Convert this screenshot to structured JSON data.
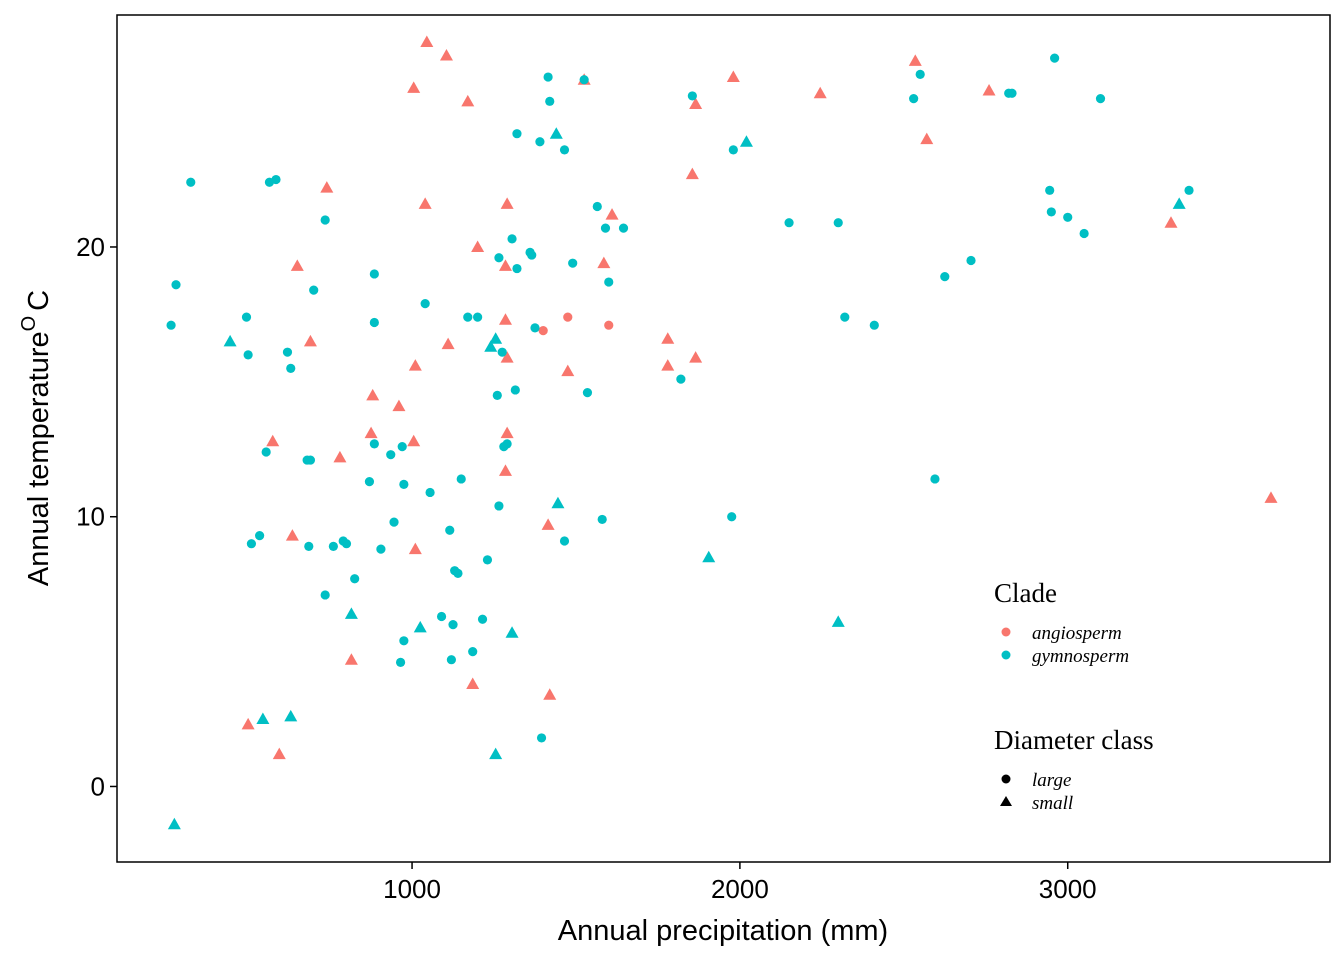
{
  "chart_data": {
    "type": "scatter",
    "xlabel": "Annual precipitation (mm)",
    "ylabel_main": "Annual temperature",
    "ylabel_sup": "O",
    "ylabel_unit": "C",
    "xlim": [
      100,
      3800
    ],
    "ylim": [
      -2.8,
      28.6
    ],
    "x_ticks": [
      1000,
      2000,
      3000
    ],
    "y_ticks": [
      0,
      10,
      20
    ],
    "grid": false,
    "legend": {
      "placement": "bottom-right-inside",
      "color_title": "Clade",
      "shape_title": "Diameter class",
      "clades": [
        {
          "name": "angiosperm",
          "color": "#F8766D"
        },
        {
          "name": "gymnosperm",
          "color": "#00BFC4"
        }
      ],
      "shapes": [
        {
          "name": "large",
          "shape": "circle"
        },
        {
          "name": "small",
          "shape": "triangle"
        }
      ]
    },
    "points": [
      {
        "x": 1045,
        "y": 27.6,
        "clade": "angiosperm",
        "size": "small"
      },
      {
        "x": 1105,
        "y": 27.1,
        "clade": "angiosperm",
        "size": "small"
      },
      {
        "x": 1005,
        "y": 25.9,
        "clade": "angiosperm",
        "size": "small"
      },
      {
        "x": 1170,
        "y": 25.4,
        "clade": "angiosperm",
        "size": "small"
      },
      {
        "x": 1040,
        "y": 21.6,
        "clade": "angiosperm",
        "size": "small"
      },
      {
        "x": 740,
        "y": 22.2,
        "clade": "angiosperm",
        "size": "small"
      },
      {
        "x": 650,
        "y": 19.3,
        "clade": "angiosperm",
        "size": "small"
      },
      {
        "x": 690,
        "y": 16.5,
        "clade": "angiosperm",
        "size": "small"
      },
      {
        "x": 1200,
        "y": 20.0,
        "clade": "angiosperm",
        "size": "small"
      },
      {
        "x": 1290,
        "y": 21.6,
        "clade": "angiosperm",
        "size": "small"
      },
      {
        "x": 1285,
        "y": 19.3,
        "clade": "angiosperm",
        "size": "small"
      },
      {
        "x": 1285,
        "y": 17.3,
        "clade": "angiosperm",
        "size": "small"
      },
      {
        "x": 1290,
        "y": 15.9,
        "clade": "angiosperm",
        "size": "small"
      },
      {
        "x": 1110,
        "y": 16.4,
        "clade": "angiosperm",
        "size": "small"
      },
      {
        "x": 1010,
        "y": 15.6,
        "clade": "angiosperm",
        "size": "small"
      },
      {
        "x": 880,
        "y": 14.5,
        "clade": "angiosperm",
        "size": "small"
      },
      {
        "x": 960,
        "y": 14.1,
        "clade": "angiosperm",
        "size": "small"
      },
      {
        "x": 875,
        "y": 13.1,
        "clade": "angiosperm",
        "size": "small"
      },
      {
        "x": 1005,
        "y": 12.8,
        "clade": "angiosperm",
        "size": "small"
      },
      {
        "x": 1290,
        "y": 13.1,
        "clade": "angiosperm",
        "size": "small"
      },
      {
        "x": 1285,
        "y": 11.7,
        "clade": "angiosperm",
        "size": "small"
      },
      {
        "x": 575,
        "y": 12.8,
        "clade": "angiosperm",
        "size": "small"
      },
      {
        "x": 780,
        "y": 12.2,
        "clade": "angiosperm",
        "size": "small"
      },
      {
        "x": 635,
        "y": 9.3,
        "clade": "angiosperm",
        "size": "small"
      },
      {
        "x": 1010,
        "y": 8.8,
        "clade": "angiosperm",
        "size": "small"
      },
      {
        "x": 1415,
        "y": 9.7,
        "clade": "angiosperm",
        "size": "small"
      },
      {
        "x": 815,
        "y": 4.7,
        "clade": "angiosperm",
        "size": "small"
      },
      {
        "x": 1185,
        "y": 3.8,
        "clade": "angiosperm",
        "size": "small"
      },
      {
        "x": 1420,
        "y": 3.4,
        "clade": "angiosperm",
        "size": "small"
      },
      {
        "x": 500,
        "y": 2.3,
        "clade": "angiosperm",
        "size": "small"
      },
      {
        "x": 595,
        "y": 1.2,
        "clade": "angiosperm",
        "size": "small"
      },
      {
        "x": 1400,
        "y": 16.9,
        "clade": "angiosperm",
        "size": "large"
      },
      {
        "x": 1475,
        "y": 17.4,
        "clade": "angiosperm",
        "size": "large"
      },
      {
        "x": 1475,
        "y": 15.4,
        "clade": "angiosperm",
        "size": "small"
      },
      {
        "x": 1585,
        "y": 19.4,
        "clade": "angiosperm",
        "size": "small"
      },
      {
        "x": 1610,
        "y": 21.2,
        "clade": "angiosperm",
        "size": "small"
      },
      {
        "x": 1600,
        "y": 17.1,
        "clade": "angiosperm",
        "size": "large"
      },
      {
        "x": 1780,
        "y": 16.6,
        "clade": "angiosperm",
        "size": "small"
      },
      {
        "x": 1780,
        "y": 15.6,
        "clade": "angiosperm",
        "size": "small"
      },
      {
        "x": 1865,
        "y": 15.9,
        "clade": "angiosperm",
        "size": "small"
      },
      {
        "x": 1855,
        "y": 22.7,
        "clade": "angiosperm",
        "size": "small"
      },
      {
        "x": 1865,
        "y": 25.3,
        "clade": "angiosperm",
        "size": "small"
      },
      {
        "x": 1980,
        "y": 26.3,
        "clade": "angiosperm",
        "size": "small"
      },
      {
        "x": 2245,
        "y": 25.7,
        "clade": "angiosperm",
        "size": "small"
      },
      {
        "x": 2535,
        "y": 26.9,
        "clade": "angiosperm",
        "size": "small"
      },
      {
        "x": 2570,
        "y": 24.0,
        "clade": "angiosperm",
        "size": "small"
      },
      {
        "x": 2760,
        "y": 25.8,
        "clade": "angiosperm",
        "size": "small"
      },
      {
        "x": 3315,
        "y": 20.9,
        "clade": "angiosperm",
        "size": "small"
      },
      {
        "x": 3620,
        "y": 10.7,
        "clade": "angiosperm",
        "size": "small"
      },
      {
        "x": 1525,
        "y": 26.2,
        "clade": "angiosperm",
        "size": "small"
      },
      {
        "x": 265,
        "y": 17.1,
        "clade": "gymnosperm",
        "size": "large"
      },
      {
        "x": 280,
        "y": 18.6,
        "clade": "gymnosperm",
        "size": "large"
      },
      {
        "x": 325,
        "y": 22.4,
        "clade": "gymnosperm",
        "size": "large"
      },
      {
        "x": 445,
        "y": 16.5,
        "clade": "gymnosperm",
        "size": "small"
      },
      {
        "x": 495,
        "y": 17.4,
        "clade": "gymnosperm",
        "size": "large"
      },
      {
        "x": 500,
        "y": 16.0,
        "clade": "gymnosperm",
        "size": "large"
      },
      {
        "x": 565,
        "y": 22.4,
        "clade": "gymnosperm",
        "size": "large"
      },
      {
        "x": 585,
        "y": 22.5,
        "clade": "gymnosperm",
        "size": "large"
      },
      {
        "x": 620,
        "y": 16.1,
        "clade": "gymnosperm",
        "size": "large"
      },
      {
        "x": 630,
        "y": 15.5,
        "clade": "gymnosperm",
        "size": "large"
      },
      {
        "x": 700,
        "y": 18.4,
        "clade": "gymnosperm",
        "size": "large"
      },
      {
        "x": 735,
        "y": 21.0,
        "clade": "gymnosperm",
        "size": "large"
      },
      {
        "x": 555,
        "y": 12.4,
        "clade": "gymnosperm",
        "size": "large"
      },
      {
        "x": 680,
        "y": 12.1,
        "clade": "gymnosperm",
        "size": "large"
      },
      {
        "x": 690,
        "y": 12.1,
        "clade": "gymnosperm",
        "size": "large"
      },
      {
        "x": 510,
        "y": 9.0,
        "clade": "gymnosperm",
        "size": "large"
      },
      {
        "x": 535,
        "y": 9.3,
        "clade": "gymnosperm",
        "size": "large"
      },
      {
        "x": 685,
        "y": 8.9,
        "clade": "gymnosperm",
        "size": "large"
      },
      {
        "x": 735,
        "y": 7.1,
        "clade": "gymnosperm",
        "size": "large"
      },
      {
        "x": 760,
        "y": 8.9,
        "clade": "gymnosperm",
        "size": "large"
      },
      {
        "x": 790,
        "y": 9.1,
        "clade": "gymnosperm",
        "size": "large"
      },
      {
        "x": 800,
        "y": 9.0,
        "clade": "gymnosperm",
        "size": "large"
      },
      {
        "x": 815,
        "y": 6.4,
        "clade": "gymnosperm",
        "size": "small"
      },
      {
        "x": 825,
        "y": 7.7,
        "clade": "gymnosperm",
        "size": "large"
      },
      {
        "x": 545,
        "y": 2.5,
        "clade": "gymnosperm",
        "size": "small"
      },
      {
        "x": 630,
        "y": 2.6,
        "clade": "gymnosperm",
        "size": "small"
      },
      {
        "x": 275,
        "y": -1.4,
        "clade": "gymnosperm",
        "size": "small"
      },
      {
        "x": 870,
        "y": 11.3,
        "clade": "gymnosperm",
        "size": "large"
      },
      {
        "x": 885,
        "y": 12.7,
        "clade": "gymnosperm",
        "size": "large"
      },
      {
        "x": 885,
        "y": 17.2,
        "clade": "gymnosperm",
        "size": "large"
      },
      {
        "x": 885,
        "y": 19.0,
        "clade": "gymnosperm",
        "size": "large"
      },
      {
        "x": 905,
        "y": 8.8,
        "clade": "gymnosperm",
        "size": "large"
      },
      {
        "x": 935,
        "y": 12.3,
        "clade": "gymnosperm",
        "size": "large"
      },
      {
        "x": 945,
        "y": 9.8,
        "clade": "gymnosperm",
        "size": "large"
      },
      {
        "x": 970,
        "y": 12.6,
        "clade": "gymnosperm",
        "size": "large"
      },
      {
        "x": 975,
        "y": 11.2,
        "clade": "gymnosperm",
        "size": "large"
      },
      {
        "x": 975,
        "y": 5.4,
        "clade": "gymnosperm",
        "size": "large"
      },
      {
        "x": 965,
        "y": 4.6,
        "clade": "gymnosperm",
        "size": "large"
      },
      {
        "x": 1025,
        "y": 5.9,
        "clade": "gymnosperm",
        "size": "small"
      },
      {
        "x": 1040,
        "y": 17.9,
        "clade": "gymnosperm",
        "size": "large"
      },
      {
        "x": 1055,
        "y": 10.9,
        "clade": "gymnosperm",
        "size": "large"
      },
      {
        "x": 1090,
        "y": 6.3,
        "clade": "gymnosperm",
        "size": "large"
      },
      {
        "x": 1115,
        "y": 9.5,
        "clade": "gymnosperm",
        "size": "large"
      },
      {
        "x": 1120,
        "y": 4.7,
        "clade": "gymnosperm",
        "size": "large"
      },
      {
        "x": 1125,
        "y": 6.0,
        "clade": "gymnosperm",
        "size": "large"
      },
      {
        "x": 1130,
        "y": 8.0,
        "clade": "gymnosperm",
        "size": "large"
      },
      {
        "x": 1140,
        "y": 7.9,
        "clade": "gymnosperm",
        "size": "large"
      },
      {
        "x": 1150,
        "y": 11.4,
        "clade": "gymnosperm",
        "size": "large"
      },
      {
        "x": 1170,
        "y": 17.4,
        "clade": "gymnosperm",
        "size": "large"
      },
      {
        "x": 1185,
        "y": 5.0,
        "clade": "gymnosperm",
        "size": "large"
      },
      {
        "x": 1200,
        "y": 17.4,
        "clade": "gymnosperm",
        "size": "large"
      },
      {
        "x": 1215,
        "y": 6.2,
        "clade": "gymnosperm",
        "size": "large"
      },
      {
        "x": 1230,
        "y": 8.4,
        "clade": "gymnosperm",
        "size": "large"
      },
      {
        "x": 1240,
        "y": 16.3,
        "clade": "gymnosperm",
        "size": "small"
      },
      {
        "x": 1255,
        "y": 16.6,
        "clade": "gymnosperm",
        "size": "small"
      },
      {
        "x": 1255,
        "y": 1.2,
        "clade": "gymnosperm",
        "size": "small"
      },
      {
        "x": 1260,
        "y": 14.5,
        "clade": "gymnosperm",
        "size": "large"
      },
      {
        "x": 1265,
        "y": 19.6,
        "clade": "gymnosperm",
        "size": "large"
      },
      {
        "x": 1265,
        "y": 10.4,
        "clade": "gymnosperm",
        "size": "large"
      },
      {
        "x": 1275,
        "y": 16.1,
        "clade": "gymnosperm",
        "size": "large"
      },
      {
        "x": 1280,
        "y": 12.6,
        "clade": "gymnosperm",
        "size": "large"
      },
      {
        "x": 1290,
        "y": 12.7,
        "clade": "gymnosperm",
        "size": "large"
      },
      {
        "x": 1305,
        "y": 20.3,
        "clade": "gymnosperm",
        "size": "large"
      },
      {
        "x": 1305,
        "y": 5.7,
        "clade": "gymnosperm",
        "size": "small"
      },
      {
        "x": 1315,
        "y": 14.7,
        "clade": "gymnosperm",
        "size": "large"
      },
      {
        "x": 1320,
        "y": 19.2,
        "clade": "gymnosperm",
        "size": "large"
      },
      {
        "x": 1320,
        "y": 24.2,
        "clade": "gymnosperm",
        "size": "large"
      },
      {
        "x": 1360,
        "y": 19.8,
        "clade": "gymnosperm",
        "size": "large"
      },
      {
        "x": 1365,
        "y": 19.7,
        "clade": "gymnosperm",
        "size": "large"
      },
      {
        "x": 1375,
        "y": 17.0,
        "clade": "gymnosperm",
        "size": "large"
      },
      {
        "x": 1390,
        "y": 23.9,
        "clade": "gymnosperm",
        "size": "large"
      },
      {
        "x": 1395,
        "y": 1.8,
        "clade": "gymnosperm",
        "size": "large"
      },
      {
        "x": 1415,
        "y": 26.3,
        "clade": "gymnosperm",
        "size": "large"
      },
      {
        "x": 1420,
        "y": 25.4,
        "clade": "gymnosperm",
        "size": "large"
      },
      {
        "x": 1440,
        "y": 24.2,
        "clade": "gymnosperm",
        "size": "small"
      },
      {
        "x": 1445,
        "y": 10.5,
        "clade": "gymnosperm",
        "size": "small"
      },
      {
        "x": 1465,
        "y": 23.6,
        "clade": "gymnosperm",
        "size": "large"
      },
      {
        "x": 1465,
        "y": 9.1,
        "clade": "gymnosperm",
        "size": "large"
      },
      {
        "x": 1490,
        "y": 19.4,
        "clade": "gymnosperm",
        "size": "large"
      },
      {
        "x": 1525,
        "y": 26.2,
        "clade": "gymnosperm",
        "size": "large"
      },
      {
        "x": 1535,
        "y": 14.6,
        "clade": "gymnosperm",
        "size": "large"
      },
      {
        "x": 1565,
        "y": 21.5,
        "clade": "gymnosperm",
        "size": "large"
      },
      {
        "x": 1580,
        "y": 9.9,
        "clade": "gymnosperm",
        "size": "large"
      },
      {
        "x": 1590,
        "y": 20.7,
        "clade": "gymnosperm",
        "size": "large"
      },
      {
        "x": 1600,
        "y": 18.7,
        "clade": "gymnosperm",
        "size": "large"
      },
      {
        "x": 1645,
        "y": 20.7,
        "clade": "gymnosperm",
        "size": "large"
      },
      {
        "x": 1820,
        "y": 15.1,
        "clade": "gymnosperm",
        "size": "large"
      },
      {
        "x": 1855,
        "y": 25.6,
        "clade": "gymnosperm",
        "size": "large"
      },
      {
        "x": 1905,
        "y": 8.5,
        "clade": "gymnosperm",
        "size": "small"
      },
      {
        "x": 1975,
        "y": 10.0,
        "clade": "gymnosperm",
        "size": "large"
      },
      {
        "x": 1980,
        "y": 23.6,
        "clade": "gymnosperm",
        "size": "large"
      },
      {
        "x": 2020,
        "y": 23.9,
        "clade": "gymnosperm",
        "size": "small"
      },
      {
        "x": 2150,
        "y": 20.9,
        "clade": "gymnosperm",
        "size": "large"
      },
      {
        "x": 2300,
        "y": 20.9,
        "clade": "gymnosperm",
        "size": "large"
      },
      {
        "x": 2300,
        "y": 6.1,
        "clade": "gymnosperm",
        "size": "small"
      },
      {
        "x": 2320,
        "y": 17.4,
        "clade": "gymnosperm",
        "size": "large"
      },
      {
        "x": 2410,
        "y": 17.1,
        "clade": "gymnosperm",
        "size": "large"
      },
      {
        "x": 2530,
        "y": 25.5,
        "clade": "gymnosperm",
        "size": "large"
      },
      {
        "x": 2550,
        "y": 26.4,
        "clade": "gymnosperm",
        "size": "large"
      },
      {
        "x": 2595,
        "y": 11.4,
        "clade": "gymnosperm",
        "size": "large"
      },
      {
        "x": 2625,
        "y": 18.9,
        "clade": "gymnosperm",
        "size": "large"
      },
      {
        "x": 2705,
        "y": 19.5,
        "clade": "gymnosperm",
        "size": "large"
      },
      {
        "x": 2820,
        "y": 25.7,
        "clade": "gymnosperm",
        "size": "large"
      },
      {
        "x": 2830,
        "y": 25.7,
        "clade": "gymnosperm",
        "size": "large"
      },
      {
        "x": 2945,
        "y": 22.1,
        "clade": "gymnosperm",
        "size": "large"
      },
      {
        "x": 2950,
        "y": 21.3,
        "clade": "gymnosperm",
        "size": "large"
      },
      {
        "x": 2960,
        "y": 27.0,
        "clade": "gymnosperm",
        "size": "large"
      },
      {
        "x": 3000,
        "y": 21.1,
        "clade": "gymnosperm",
        "size": "large"
      },
      {
        "x": 3050,
        "y": 20.5,
        "clade": "gymnosperm",
        "size": "large"
      },
      {
        "x": 3100,
        "y": 25.5,
        "clade": "gymnosperm",
        "size": "large"
      },
      {
        "x": 3340,
        "y": 21.6,
        "clade": "gymnosperm",
        "size": "small"
      },
      {
        "x": 3370,
        "y": 22.1,
        "clade": "gymnosperm",
        "size": "large"
      }
    ]
  }
}
